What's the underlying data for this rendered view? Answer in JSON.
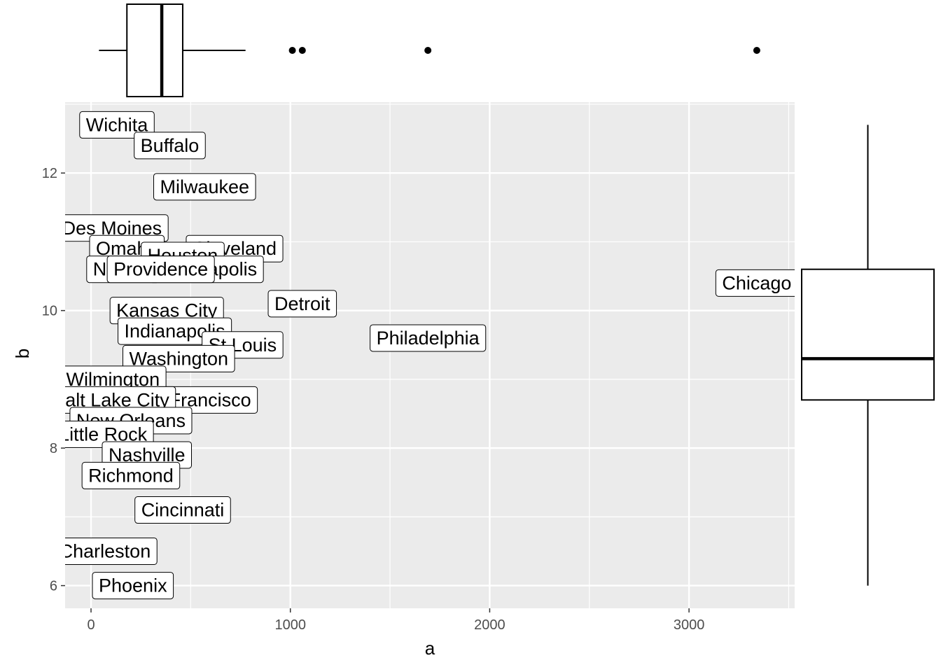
{
  "chart_data": {
    "type": "scatter",
    "title": "",
    "xlabel": "a",
    "ylabel": "b",
    "xlim": [
      -130,
      3530
    ],
    "ylim": [
      5.67,
      13.03
    ],
    "x_ticks": [
      0,
      1000,
      2000,
      3000
    ],
    "x_tick_labels": [
      "0",
      "1000",
      "2000",
      "3000"
    ],
    "y_ticks": [
      6,
      8,
      10,
      12
    ],
    "y_tick_labels": [
      "6",
      "8",
      "10",
      "12"
    ],
    "grid": true,
    "panel_background": "#ebebeb",
    "grid_color": "#ffffff",
    "points": [
      {
        "label": "Wichita",
        "x": 130,
        "y": 12.7
      },
      {
        "label": "Buffalo",
        "x": 395,
        "y": 12.4
      },
      {
        "label": "Milwaukee",
        "x": 570,
        "y": 11.8
      },
      {
        "label": "Des Moines",
        "x": 105,
        "y": 11.2
      },
      {
        "label": "Cleveland",
        "x": 720,
        "y": 10.9
      },
      {
        "label": "Omaha",
        "x": 180,
        "y": 10.9
      },
      {
        "label": "Houston",
        "x": 460,
        "y": 10.8
      },
      {
        "label": "Minneapolis",
        "x": 580,
        "y": 10.6
      },
      {
        "label": "Norfolk",
        "x": 160,
        "y": 10.6
      },
      {
        "label": "Providence",
        "x": 350,
        "y": 10.6
      },
      {
        "label": "Chicago",
        "x": 3340,
        "y": 10.4
      },
      {
        "label": "Detroit",
        "x": 1060,
        "y": 10.1
      },
      {
        "label": "Kansas City",
        "x": 380,
        "y": 10.0
      },
      {
        "label": "Indianapolis",
        "x": 420,
        "y": 9.7
      },
      {
        "label": "Philadelphia",
        "x": 1690,
        "y": 9.6
      },
      {
        "label": "St Louis",
        "x": 760,
        "y": 9.5
      },
      {
        "label": "Washington",
        "x": 440,
        "y": 9.3
      },
      {
        "label": "Wilmington",
        "x": 110,
        "y": 9.0
      },
      {
        "label": "San Francisco",
        "x": 500,
        "y": 8.7
      },
      {
        "label": "Salt Lake City",
        "x": 100,
        "y": 8.7
      },
      {
        "label": "New Orleans",
        "x": 200,
        "y": 8.4
      },
      {
        "label": "Little Rock",
        "x": 60,
        "y": 8.2
      },
      {
        "label": "Nashville",
        "x": 280,
        "y": 7.9
      },
      {
        "label": "Richmond",
        "x": 200,
        "y": 7.6
      },
      {
        "label": "Cincinnati",
        "x": 460,
        "y": 7.1
      },
      {
        "label": "Charleston",
        "x": 70,
        "y": 6.5
      },
      {
        "label": "Phoenix",
        "x": 210,
        "y": 6.0
      }
    ],
    "x_boxplot": {
      "lower_whisker": 40,
      "q1": 180,
      "median": 355,
      "q3": 460,
      "upper_whisker": 775,
      "outliers": [
        1010,
        1060,
        1690,
        3340
      ]
    },
    "y_boxplot": {
      "lower_whisker": 6.0,
      "q1": 8.7,
      "median": 9.3,
      "q3": 10.6,
      "upper_whisker": 12.7
    }
  }
}
